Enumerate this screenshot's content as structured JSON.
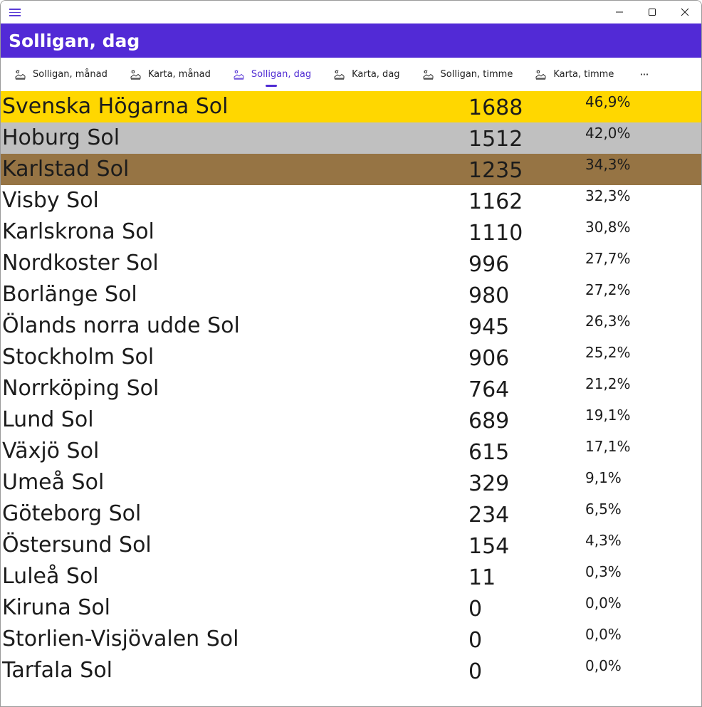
{
  "window": {
    "icons": {
      "menu": "hamburger-menu-icon",
      "minimize": "minimize-icon",
      "maximize": "maximize-icon",
      "close": "close-icon"
    }
  },
  "header": {
    "title": "Solligan, dag",
    "background": "#522ad6"
  },
  "tabs": [
    {
      "label": "Solligan, månad",
      "icon": "sun-landscape-icon",
      "active": false
    },
    {
      "label": "Karta, månad",
      "icon": "sun-landscape-icon",
      "active": false
    },
    {
      "label": "Solligan, dag",
      "icon": "sun-landscape-icon",
      "active": true
    },
    {
      "label": "Karta, dag",
      "icon": "sun-landscape-icon",
      "active": false
    },
    {
      "label": "Solligan, timme",
      "icon": "sun-landscape-icon",
      "active": false
    },
    {
      "label": "Karta, timme",
      "icon": "sun-landscape-icon",
      "active": false
    }
  ],
  "more_label": "···",
  "accent": "#4f2bd3",
  "rows": [
    {
      "name": "Svenska Högarna Sol",
      "value": "1688",
      "percent": "46,9%",
      "background": "#ffd700"
    },
    {
      "name": "Hoburg Sol",
      "value": "1512",
      "percent": "42,0%",
      "background": "#c0c0c0"
    },
    {
      "name": "Karlstad Sol",
      "value": "1235",
      "percent": "34,3%",
      "background": "#967444"
    },
    {
      "name": "Visby Sol",
      "value": "1162",
      "percent": "32,3%"
    },
    {
      "name": "Karlskrona Sol",
      "value": "1110",
      "percent": "30,8%"
    },
    {
      "name": "Nordkoster Sol",
      "value": "996",
      "percent": "27,7%"
    },
    {
      "name": "Borlänge Sol",
      "value": "980",
      "percent": "27,2%"
    },
    {
      "name": "Ölands norra udde Sol",
      "value": "945",
      "percent": "26,3%"
    },
    {
      "name": "Stockholm Sol",
      "value": "906",
      "percent": "25,2%"
    },
    {
      "name": "Norrköping Sol",
      "value": "764",
      "percent": "21,2%"
    },
    {
      "name": "Lund Sol",
      "value": "689",
      "percent": "19,1%"
    },
    {
      "name": "Växjö Sol",
      "value": "615",
      "percent": "17,1%"
    },
    {
      "name": "Umeå Sol",
      "value": "329",
      "percent": "9,1%"
    },
    {
      "name": "Göteborg Sol",
      "value": "234",
      "percent": "6,5%"
    },
    {
      "name": "Östersund Sol",
      "value": "154",
      "percent": "4,3%"
    },
    {
      "name": "Luleå Sol",
      "value": "11",
      "percent": "0,3%"
    },
    {
      "name": "Kiruna Sol",
      "value": "0",
      "percent": "0,0%"
    },
    {
      "name": "Storlien-Visjövalen Sol",
      "value": "0",
      "percent": "0,0%"
    },
    {
      "name": "Tarfala Sol",
      "value": "0",
      "percent": "0,0%"
    }
  ]
}
